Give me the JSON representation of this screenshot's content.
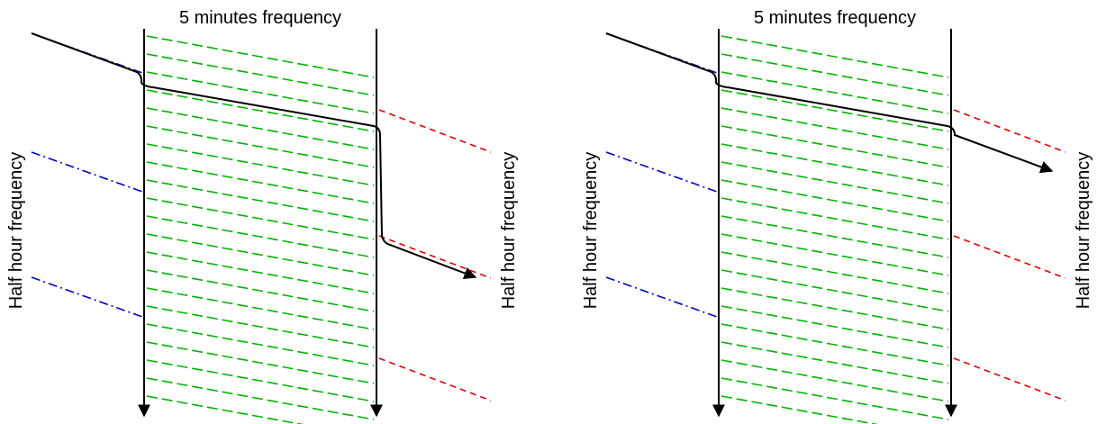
{
  "panels": [
    {
      "id": "left",
      "top_label": "5 minutes frequency",
      "left_side_label": "Half hour frequency",
      "right_side_label": "Half hour frequency",
      "path_variant": "drop"
    },
    {
      "id": "right",
      "top_label": "5 minutes frequency",
      "left_side_label": "Half hour frequency",
      "right_side_label": "Half hour frequency",
      "path_variant": "smooth"
    }
  ],
  "colors": {
    "axis": "#000000",
    "fine_grid": "#00b400",
    "coarse_left": "#0000c8",
    "coarse_right": "#e00000",
    "path": "#000000",
    "background": "#ffffff"
  }
}
